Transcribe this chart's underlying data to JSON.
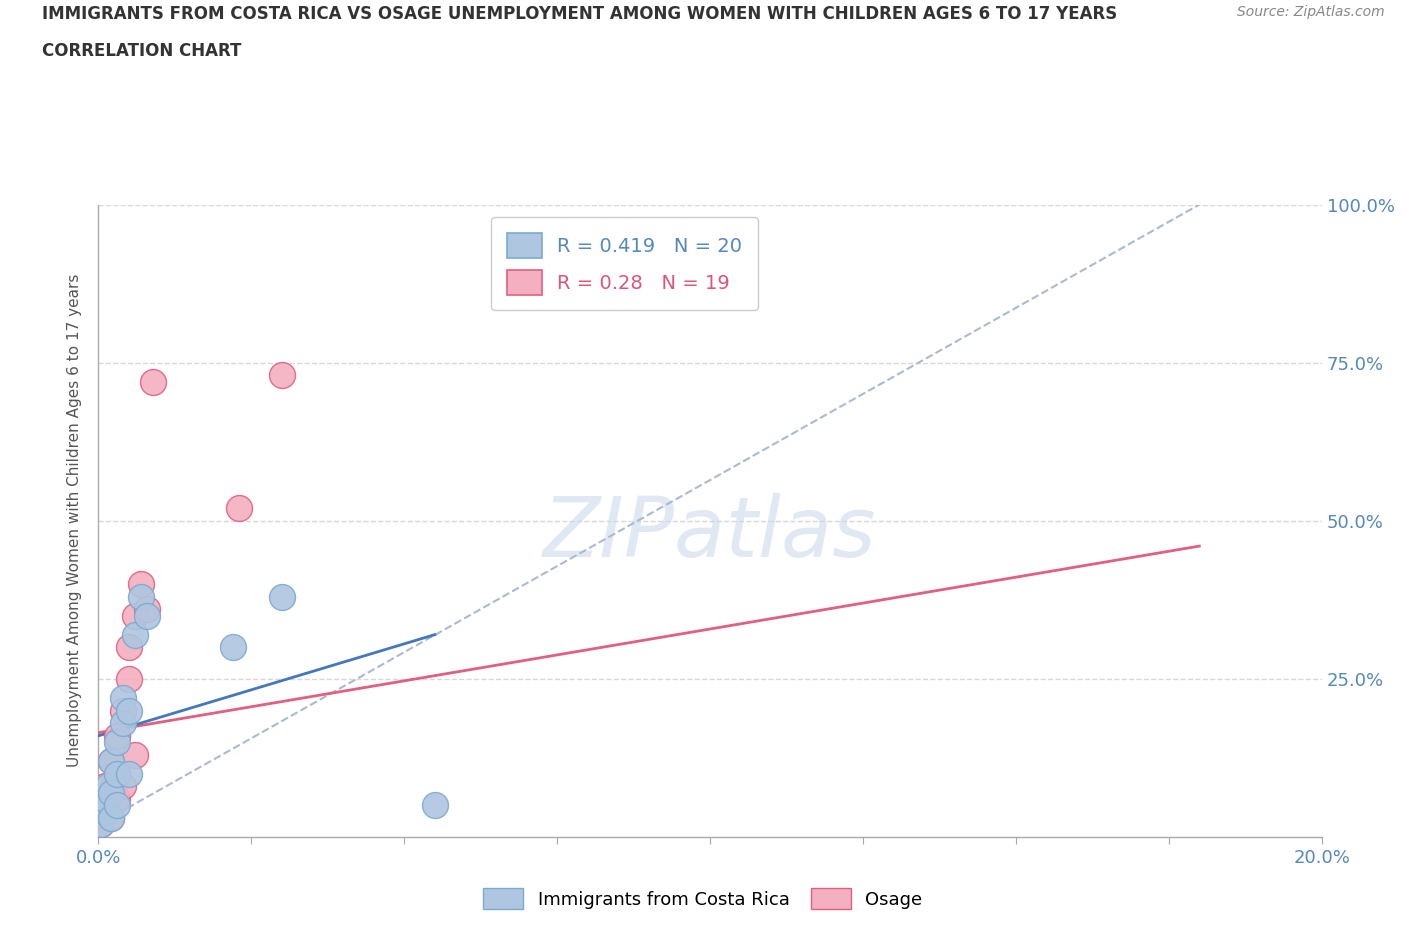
{
  "title_line1": "IMMIGRANTS FROM COSTA RICA VS OSAGE UNEMPLOYMENT AMONG WOMEN WITH CHILDREN AGES 6 TO 17 YEARS",
  "title_line2": "CORRELATION CHART",
  "source": "Source: ZipAtlas.com",
  "ylabel": "Unemployment Among Women with Children Ages 6 to 17 years",
  "xlim": [
    0.0,
    0.2
  ],
  "ylim": [
    0.0,
    1.0
  ],
  "xticks": [
    0.0,
    0.025,
    0.05,
    0.075,
    0.1,
    0.125,
    0.15,
    0.175,
    0.2
  ],
  "ytick_vals": [
    0.0,
    0.25,
    0.5,
    0.75,
    1.0
  ],
  "ytick_labels": [
    "",
    "25.0%",
    "50.0%",
    "75.0%",
    "100.0%"
  ],
  "blue_R": 0.419,
  "blue_N": 20,
  "pink_R": 0.28,
  "pink_N": 19,
  "blue_scatter_x": [
    0.0005,
    0.001,
    0.001,
    0.0015,
    0.002,
    0.002,
    0.002,
    0.003,
    0.003,
    0.003,
    0.004,
    0.004,
    0.005,
    0.005,
    0.006,
    0.007,
    0.008,
    0.022,
    0.03,
    0.055
  ],
  "blue_scatter_y": [
    0.02,
    0.04,
    0.06,
    0.08,
    0.03,
    0.07,
    0.12,
    0.05,
    0.1,
    0.15,
    0.18,
    0.22,
    0.1,
    0.2,
    0.32,
    0.38,
    0.35,
    0.3,
    0.38,
    0.05
  ],
  "pink_scatter_x": [
    0.0005,
    0.001,
    0.001,
    0.002,
    0.002,
    0.003,
    0.003,
    0.003,
    0.004,
    0.004,
    0.005,
    0.005,
    0.006,
    0.006,
    0.007,
    0.008,
    0.009,
    0.023,
    0.03
  ],
  "pink_scatter_y": [
    0.02,
    0.05,
    0.08,
    0.03,
    0.12,
    0.06,
    0.1,
    0.16,
    0.08,
    0.2,
    0.25,
    0.3,
    0.13,
    0.35,
    0.4,
    0.36,
    0.72,
    0.52,
    0.73
  ],
  "blue_solid_line_x": [
    0.0,
    0.055
  ],
  "blue_solid_line_y": [
    0.16,
    0.32
  ],
  "dashed_line_x": [
    0.0,
    0.18
  ],
  "dashed_line_y": [
    0.02,
    1.0
  ],
  "pink_line_x": [
    0.0,
    0.18
  ],
  "pink_line_y": [
    0.165,
    0.46
  ],
  "blue_color": "#aec6e0",
  "blue_edge_color": "#7aaad0",
  "pink_color": "#f4afc0",
  "pink_edge_color": "#e06080",
  "dashed_line_color": "#aabbd0",
  "blue_solid_color": "#4477bb",
  "pink_line_color": "#e06080",
  "watermark_text": "ZIPatlas",
  "background_color": "#ffffff",
  "grid_color": "#d8d8d8"
}
